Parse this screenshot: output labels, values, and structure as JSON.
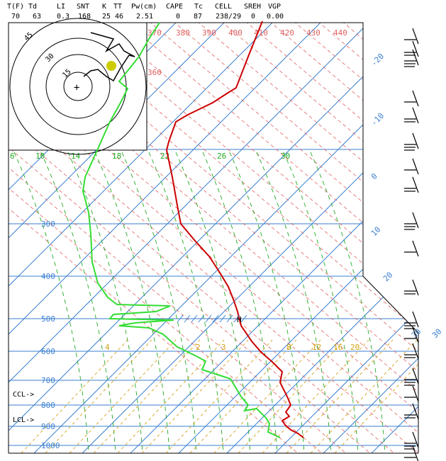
{
  "header": {
    "labels": [
      "T(F)",
      "Td",
      "LI",
      "SNT",
      "K",
      "TT",
      "Pw(cm)",
      "CAPE",
      "Tc",
      "CELL",
      "SREH",
      "VGP"
    ],
    "values": [
      "70",
      "63",
      "0.3",
      "168",
      "25",
      "46",
      "2.51",
      "0",
      "87",
      "238/29",
      "0",
      "0.00"
    ]
  },
  "chart_data": {
    "type": "line",
    "title": "",
    "xlabel": "",
    "ylabel": "",
    "pressure_levels": [
      "300",
      "400",
      "500",
      "600",
      "700",
      "800",
      "900",
      "1000"
    ],
    "ccl_label": "CCL->",
    "lcl_label": "LCL->",
    "isotherm_labels": [
      "30",
      "-20",
      "-10",
      "0",
      "10",
      "20",
      "30"
    ],
    "dry_adiabat_labels": [
      "370",
      "380",
      "390",
      "400",
      "410",
      "420",
      "430",
      "440",
      "360"
    ],
    "moist_adiabat_labels": [
      "6",
      "10",
      "14",
      "18",
      "22",
      "26",
      "30"
    ],
    "mixing_ratio_labels": [
      "4",
      "2",
      "3",
      "8",
      "12",
      "16",
      "20"
    ],
    "hodograph_ring_labels": [
      "45",
      "30",
      "15"
    ],
    "hodograph_center_label": "+",
    "wind_level_marker": "H",
    "colors": {
      "temperature": "#cc0000",
      "dewpoint": "#33dd33",
      "isotherm": "#3a7fd0",
      "dry_adiabat": "#e06060",
      "moist_adiabat": "#22aa22",
      "mixing_ratio": "#d4a017",
      "hodograph_point": "#cccc00"
    },
    "series": [
      {
        "values": [
          [
            370,
            30
          ],
          [
            350,
            80
          ],
          [
            333,
            124
          ],
          [
            320,
            132
          ],
          [
            300,
            145
          ],
          [
            265,
            162
          ],
          [
            248,
            172
          ],
          [
            238,
            200
          ],
          [
            235,
            212
          ],
          [
            243,
            250
          ],
          [
            250,
            290
          ],
          [
            255,
            316
          ],
          [
            275,
            340
          ],
          [
            295,
            362
          ],
          [
            310,
            385
          ],
          [
            322,
            405
          ],
          [
            330,
            425
          ],
          [
            335,
            440
          ],
          [
            340,
            460
          ],
          [
            355,
            482
          ],
          [
            368,
            497
          ],
          [
            385,
            512
          ],
          [
            398,
            525
          ],
          [
            395,
            540
          ],
          [
            405,
            560
          ],
          [
            410,
            572
          ],
          [
            403,
            582
          ],
          [
            408,
            588
          ],
          [
            398,
            594
          ],
          [
            402,
            600
          ],
          [
            410,
            607
          ],
          [
            420,
            612
          ],
          [
            428,
            618
          ]
        ]
      },
      {
        "values": [
          [
            225,
            32
          ],
          [
            210,
            55
          ],
          [
            196,
            80
          ],
          [
            180,
            100
          ],
          [
            168,
            115
          ],
          [
            180,
            125
          ],
          [
            170,
            145
          ],
          [
            155,
            172
          ],
          [
            138,
            210
          ],
          [
            120,
            250
          ],
          [
            117,
            270
          ],
          [
            125,
            300
          ],
          [
            128,
            330
          ],
          [
            130,
            370
          ],
          [
            138,
            400
          ],
          [
            152,
            420
          ],
          [
            165,
            430
          ],
          [
            240,
            432
          ],
          [
            220,
            440
          ],
          [
            160,
            444
          ],
          [
            155,
            450
          ],
          [
            245,
            452
          ],
          [
            190,
            456
          ],
          [
            168,
            460
          ],
          [
            210,
            463
          ],
          [
            230,
            472
          ],
          [
            250,
            490
          ],
          [
            275,
            502
          ],
          [
            290,
            510
          ],
          [
            285,
            522
          ],
          [
            325,
            535
          ],
          [
            340,
            560
          ],
          [
            350,
            572
          ],
          [
            345,
            580
          ],
          [
            362,
            577
          ],
          [
            375,
            590
          ],
          [
            380,
            598
          ],
          [
            378,
            610
          ],
          [
            395,
            618
          ]
        ]
      }
    ]
  }
}
